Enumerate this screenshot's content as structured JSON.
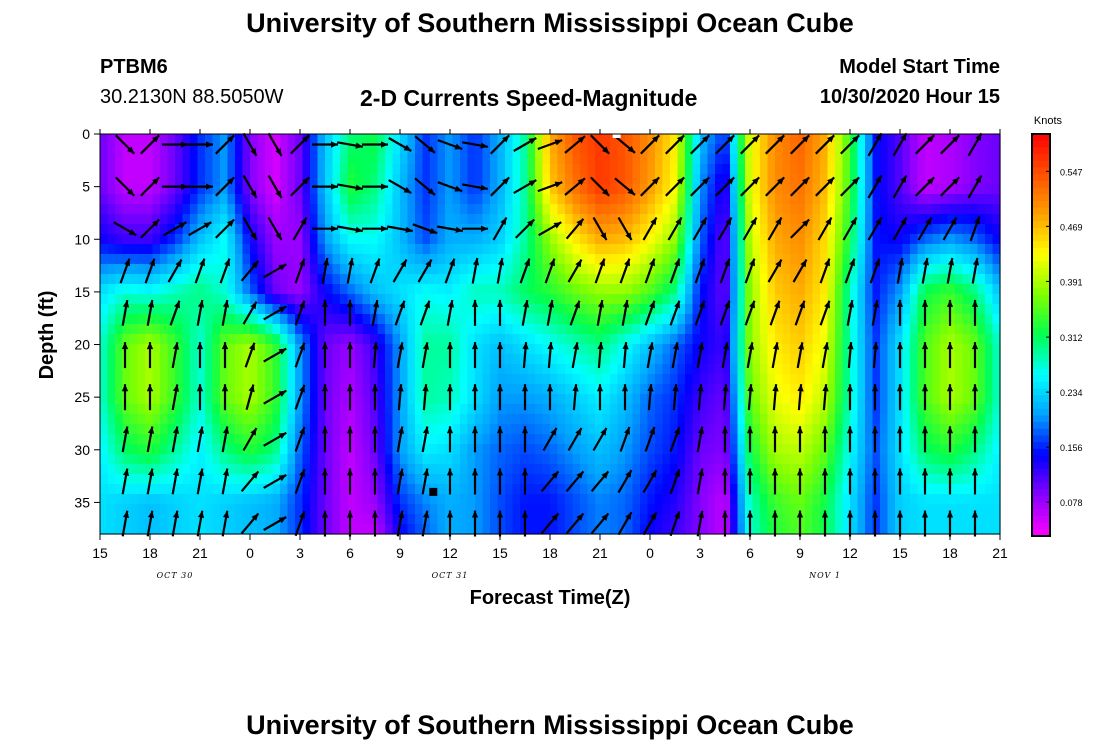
{
  "header": {
    "title_top": "University of Southern Mississippi Ocean Cube",
    "station": "PTBM6",
    "coords": "30.2130N 88.5050W",
    "plot_title": "2-D Currents Speed-Magnitude",
    "start_label": "Model Start Time",
    "start_value": "10/30/2020 Hour 15",
    "title_bottom": "University of Southern Mississippi Ocean Cube"
  },
  "chart_data": {
    "type": "heatmap",
    "xlabel": "Forecast Time(Z)",
    "ylabel": "Depth (ft)",
    "x_tick_labels": [
      "15",
      "18",
      "21",
      "0",
      "3",
      "6",
      "9",
      "12",
      "15",
      "18",
      "21",
      "0",
      "3",
      "6",
      "9",
      "12",
      "15",
      "18",
      "21"
    ],
    "date_labels": [
      {
        "text": "OCT 30",
        "at_tick": 1.5
      },
      {
        "text": "OCT 31",
        "at_tick": 7
      },
      {
        "text": "NOV 1",
        "at_tick": 14.5
      }
    ],
    "y_ticks": [
      0,
      5,
      10,
      15,
      20,
      25,
      30,
      35
    ],
    "ylim": [
      0,
      38
    ],
    "x_range_hours": [
      0,
      54
    ],
    "colorbar": {
      "unit": "Knots",
      "labels": [
        "0.547",
        "0.469",
        "0.391",
        "0.312",
        "0.234",
        "0.156",
        "0.078"
      ],
      "stops": [
        "#ff00ff",
        "#8a00ff",
        "#0000ff",
        "#00a0ff",
        "#00ffff",
        "#00ff50",
        "#80ff00",
        "#ffff00",
        "#ffa000",
        "#ff5000",
        "#ff0000"
      ]
    },
    "speed_grid": {
      "depths": [
        0,
        5,
        10,
        15,
        20,
        25,
        30,
        35,
        38
      ],
      "hours": [
        0,
        1.5,
        3,
        4.5,
        6,
        7.5,
        9,
        10.5,
        12,
        13.5,
        15,
        16.5,
        18,
        19.5,
        21,
        22.5,
        24,
        25.5,
        27,
        28.5,
        30,
        31.5,
        33,
        34.5,
        36,
        37.5,
        39,
        40.5,
        42,
        43.5,
        45,
        46.5,
        48,
        49.5,
        51,
        52.5,
        54
      ],
      "values_knots": [
        [
          0.1,
          0.06,
          0.06,
          0.1,
          0.16,
          0.2,
          0.09,
          0.05,
          0.1,
          0.22,
          0.3,
          0.32,
          0.24,
          0.16,
          0.2,
          0.16,
          0.21,
          0.29,
          0.48,
          0.54,
          0.56,
          0.54,
          0.5,
          0.44,
          0.22,
          0.16,
          0.42,
          0.5,
          0.53,
          0.48,
          0.34,
          0.15,
          0.11,
          0.06,
          0.07,
          0.09,
          0.1
        ],
        [
          0.1,
          0.06,
          0.06,
          0.1,
          0.16,
          0.2,
          0.09,
          0.05,
          0.1,
          0.22,
          0.33,
          0.3,
          0.22,
          0.16,
          0.2,
          0.16,
          0.21,
          0.29,
          0.46,
          0.52,
          0.56,
          0.54,
          0.49,
          0.43,
          0.2,
          0.12,
          0.42,
          0.5,
          0.52,
          0.47,
          0.34,
          0.15,
          0.11,
          0.06,
          0.07,
          0.09,
          0.1
        ],
        [
          0.14,
          0.12,
          0.12,
          0.16,
          0.22,
          0.26,
          0.14,
          0.08,
          0.08,
          0.2,
          0.26,
          0.26,
          0.22,
          0.17,
          0.21,
          0.21,
          0.23,
          0.29,
          0.38,
          0.44,
          0.48,
          0.47,
          0.43,
          0.38,
          0.18,
          0.1,
          0.4,
          0.48,
          0.5,
          0.45,
          0.32,
          0.15,
          0.14,
          0.18,
          0.2,
          0.18,
          0.14
        ],
        [
          0.24,
          0.27,
          0.26,
          0.28,
          0.3,
          0.27,
          0.18,
          0.1,
          0.08,
          0.14,
          0.18,
          0.22,
          0.24,
          0.26,
          0.25,
          0.28,
          0.28,
          0.31,
          0.33,
          0.36,
          0.38,
          0.38,
          0.35,
          0.3,
          0.15,
          0.1,
          0.38,
          0.46,
          0.48,
          0.44,
          0.28,
          0.15,
          0.2,
          0.32,
          0.34,
          0.3,
          0.22
        ],
        [
          0.27,
          0.36,
          0.39,
          0.34,
          0.27,
          0.36,
          0.39,
          0.34,
          0.2,
          0.1,
          0.08,
          0.12,
          0.2,
          0.29,
          0.29,
          0.24,
          0.22,
          0.24,
          0.26,
          0.28,
          0.3,
          0.26,
          0.22,
          0.18,
          0.14,
          0.12,
          0.38,
          0.44,
          0.46,
          0.42,
          0.28,
          0.16,
          0.24,
          0.35,
          0.39,
          0.36,
          0.27
        ],
        [
          0.27,
          0.36,
          0.39,
          0.34,
          0.27,
          0.36,
          0.39,
          0.34,
          0.2,
          0.1,
          0.07,
          0.11,
          0.2,
          0.29,
          0.28,
          0.24,
          0.2,
          0.2,
          0.21,
          0.23,
          0.25,
          0.22,
          0.18,
          0.16,
          0.12,
          0.1,
          0.36,
          0.42,
          0.44,
          0.4,
          0.28,
          0.16,
          0.24,
          0.35,
          0.39,
          0.36,
          0.27
        ],
        [
          0.25,
          0.31,
          0.33,
          0.29,
          0.25,
          0.3,
          0.33,
          0.3,
          0.18,
          0.1,
          0.06,
          0.1,
          0.2,
          0.25,
          0.24,
          0.2,
          0.18,
          0.17,
          0.18,
          0.2,
          0.22,
          0.2,
          0.17,
          0.15,
          0.1,
          0.09,
          0.32,
          0.39,
          0.4,
          0.36,
          0.26,
          0.17,
          0.24,
          0.31,
          0.33,
          0.3,
          0.25
        ],
        [
          0.24,
          0.23,
          0.22,
          0.23,
          0.24,
          0.23,
          0.22,
          0.21,
          0.16,
          0.1,
          0.06,
          0.08,
          0.16,
          0.19,
          0.21,
          0.2,
          0.17,
          0.15,
          0.15,
          0.17,
          0.19,
          0.18,
          0.15,
          0.13,
          0.09,
          0.06,
          0.28,
          0.34,
          0.36,
          0.32,
          0.24,
          0.16,
          0.23,
          0.24,
          0.24,
          0.24,
          0.24
        ],
        [
          0.24,
          0.23,
          0.22,
          0.23,
          0.24,
          0.23,
          0.22,
          0.21,
          0.16,
          0.1,
          0.06,
          0.06,
          0.14,
          0.18,
          0.21,
          0.2,
          0.17,
          0.15,
          0.15,
          0.17,
          0.19,
          0.18,
          0.14,
          0.12,
          0.09,
          0.06,
          0.27,
          0.33,
          0.35,
          0.32,
          0.24,
          0.16,
          0.23,
          0.24,
          0.24,
          0.24,
          0.24
        ]
      ]
    },
    "current_vectors": {
      "rows_depth_ft": [
        1,
        5,
        9,
        13,
        17,
        21,
        25,
        29,
        33,
        37
      ],
      "columns_hours": [
        0,
        1.5,
        3,
        4.5,
        6,
        7.5,
        9,
        10.5,
        12,
        13.5,
        15,
        16.5,
        18,
        19.5,
        21,
        22.5,
        24,
        25.5,
        27,
        28.5,
        30,
        31.5,
        33,
        34.5,
        36,
        37.5,
        39,
        40.5,
        42,
        43.5,
        45,
        46.5,
        48,
        49.5,
        51,
        52.5,
        54
      ],
      "direction_deg_by_row": [
        [
          135,
          135,
          45,
          90,
          90,
          45,
          150,
          150,
          45,
          90,
          100,
          90,
          120,
          130,
          110,
          100,
          45,
          60,
          70,
          50,
          135,
          130,
          45,
          45,
          45,
          45,
          45,
          45,
          45,
          45,
          45,
          30,
          30,
          45,
          45,
          30,
          0
        ],
        [
          135,
          135,
          45,
          90,
          90,
          45,
          150,
          150,
          45,
          90,
          100,
          90,
          120,
          130,
          110,
          100,
          45,
          60,
          70,
          50,
          135,
          130,
          45,
          45,
          45,
          45,
          45,
          45,
          45,
          45,
          45,
          30,
          30,
          45,
          45,
          30,
          0
        ],
        [
          120,
          120,
          45,
          60,
          60,
          45,
          150,
          150,
          30,
          90,
          100,
          90,
          100,
          110,
          100,
          90,
          30,
          45,
          60,
          40,
          150,
          150,
          30,
          30,
          30,
          30,
          30,
          30,
          45,
          30,
          30,
          30,
          30,
          30,
          30,
          20,
          0
        ],
        [
          30,
          20,
          20,
          30,
          20,
          20,
          40,
          60,
          20,
          10,
          10,
          20,
          30,
          30,
          20,
          10,
          10,
          20,
          20,
          30,
          20,
          20,
          20,
          20,
          20,
          20,
          20,
          30,
          30,
          20,
          20,
          20,
          10,
          10,
          10,
          10,
          0
        ],
        [
          20,
          10,
          10,
          20,
          10,
          10,
          30,
          60,
          20,
          0,
          0,
          10,
          20,
          20,
          10,
          0,
          0,
          10,
          10,
          20,
          10,
          10,
          20,
          20,
          20,
          20,
          20,
          20,
          20,
          20,
          10,
          10,
          0,
          0,
          0,
          0,
          0
        ],
        [
          10,
          0,
          0,
          10,
          0,
          0,
          20,
          60,
          20,
          0,
          0,
          5,
          10,
          10,
          0,
          0,
          0,
          5,
          5,
          10,
          5,
          5,
          10,
          10,
          10,
          10,
          10,
          10,
          10,
          10,
          5,
          5,
          0,
          0,
          0,
          0,
          0
        ],
        [
          10,
          0,
          0,
          10,
          0,
          0,
          15,
          60,
          20,
          0,
          0,
          0,
          5,
          5,
          0,
          0,
          0,
          0,
          0,
          5,
          0,
          0,
          5,
          5,
          5,
          5,
          5,
          5,
          5,
          5,
          0,
          0,
          0,
          0,
          0,
          0,
          0
        ],
        [
          10,
          10,
          10,
          10,
          10,
          10,
          30,
          60,
          20,
          0,
          0,
          0,
          10,
          10,
          0,
          0,
          0,
          0,
          30,
          30,
          30,
          20,
          20,
          20,
          10,
          0,
          0,
          0,
          0,
          0,
          0,
          0,
          0,
          0,
          0,
          0,
          0
        ],
        [
          10,
          10,
          10,
          10,
          10,
          10,
          40,
          60,
          20,
          0,
          0,
          0,
          10,
          10,
          0,
          0,
          0,
          0,
          40,
          40,
          40,
          30,
          30,
          20,
          10,
          0,
          0,
          0,
          0,
          0,
          0,
          0,
          0,
          0,
          0,
          0,
          0
        ],
        [
          10,
          10,
          10,
          10,
          10,
          10,
          40,
          60,
          20,
          0,
          0,
          0,
          10,
          10,
          0,
          0,
          0,
          0,
          40,
          40,
          40,
          30,
          30,
          20,
          10,
          0,
          0,
          0,
          0,
          0,
          0,
          0,
          0,
          0,
          0,
          0,
          0
        ]
      ]
    },
    "markers": [
      {
        "hour": 31,
        "depth": 0,
        "color": "#ffffff"
      },
      {
        "hour": 20,
        "depth": 34,
        "color": "#000000"
      }
    ]
  }
}
